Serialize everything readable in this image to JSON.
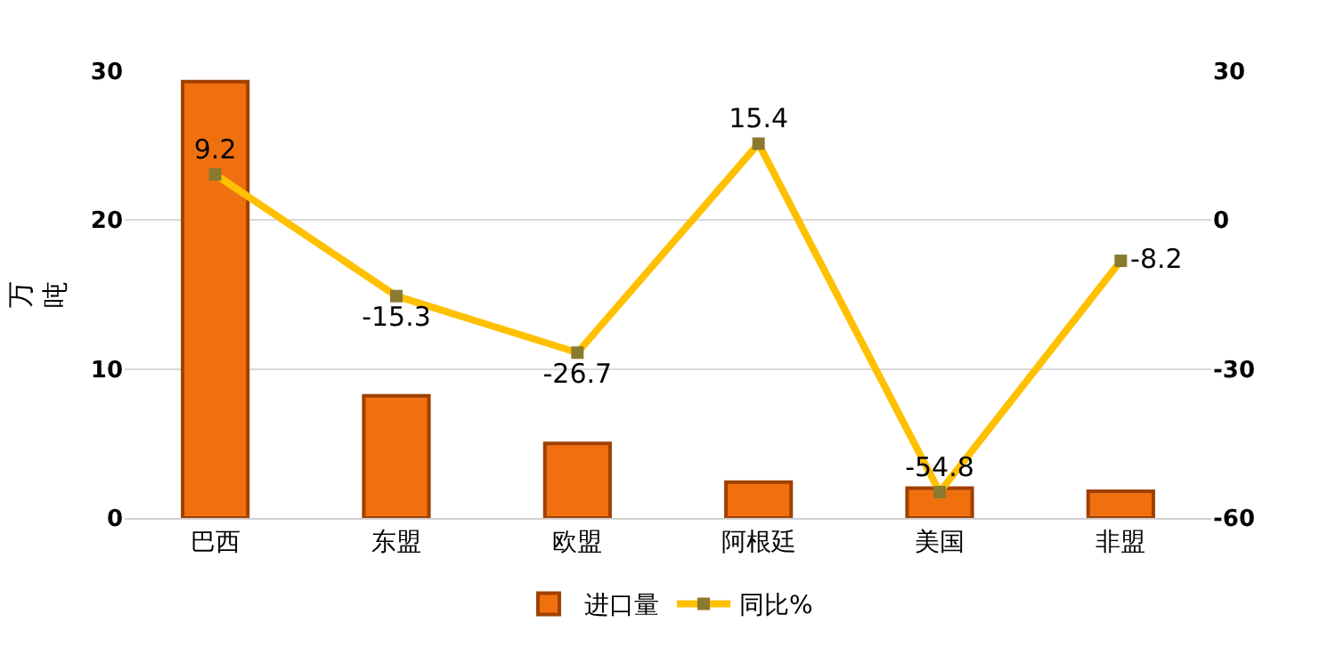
{
  "chart_data": {
    "type": "bar",
    "ylabel": "万吨",
    "categories": [
      "巴西",
      "东盟",
      "欧盟",
      "阿根廷",
      "美国",
      "非盟"
    ],
    "series": [
      {
        "name": "进口量",
        "color": "#f07010",
        "values": [
          29.3,
          8.2,
          5.0,
          2.4,
          2.0,
          1.8
        ]
      },
      {
        "name": "同比%",
        "type": "line",
        "axis": "y2",
        "color": "#ffc000",
        "marker": "square",
        "values": [
          9.2,
          -15.3,
          -26.7,
          15.4,
          -54.8,
          -8.2
        ],
        "value_labels": [
          "9.2",
          "-15.3",
          "-26.7",
          "15.4",
          "-54.8",
          "-8.2"
        ]
      }
    ],
    "ylim": [
      0,
      30
    ],
    "yticks": [
      0,
      10,
      20,
      30
    ],
    "y2lim": [
      -60,
      30
    ],
    "y2ticks": [
      -60,
      -30,
      0,
      30
    ],
    "grid": "y",
    "legend": "bottom"
  }
}
